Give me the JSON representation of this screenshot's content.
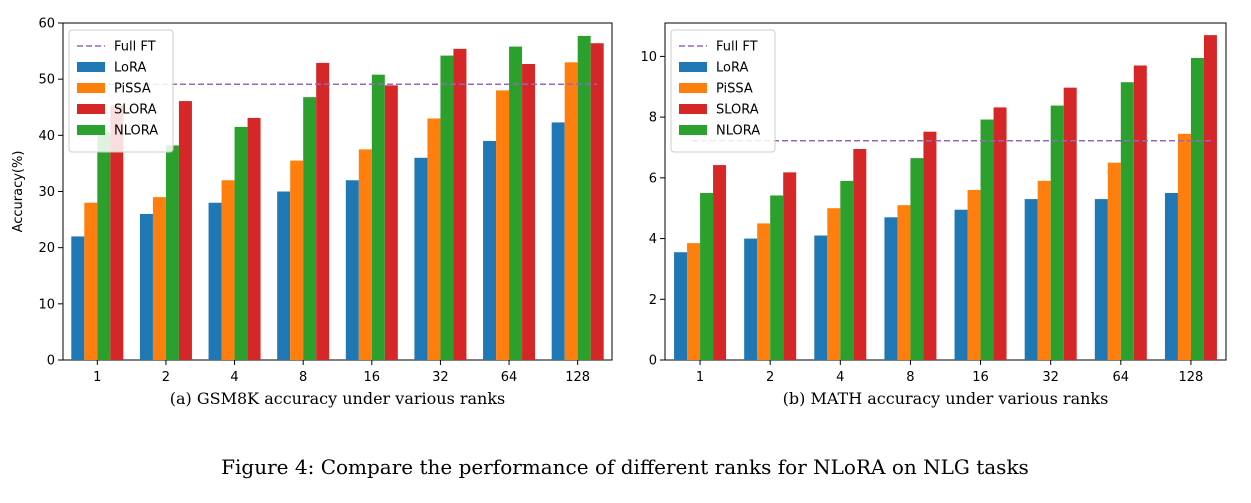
{
  "figure_caption": "Figure 4: Compare the performance of different ranks for NLoRA on NLG tasks",
  "colors": {
    "LoRA": "#1f77b4",
    "PiSSA": "#ff7f0e",
    "SLORA": "#d62728",
    "NLORA": "#2ca02c",
    "Full FT": "#9467bd"
  },
  "chart_data": [
    {
      "type": "bar",
      "caption": "(a) GSM8K accuracy under various ranks",
      "ylabel": "Accuracy(%)",
      "xlabel": "",
      "categories": [
        "1",
        "2",
        "4",
        "8",
        "16",
        "32",
        "64",
        "128"
      ],
      "ylim": [
        0,
        60
      ],
      "yticks": [
        0,
        10,
        20,
        30,
        40,
        50,
        60
      ],
      "legend_position": "top-left",
      "grid": false,
      "series": [
        {
          "name": "LoRA",
          "values": [
            22,
            26,
            28,
            30,
            32,
            36,
            39,
            42.3
          ]
        },
        {
          "name": "PiSSA",
          "values": [
            28,
            29,
            32,
            35.5,
            37.5,
            43,
            48,
            53
          ]
        },
        {
          "name": "NLORA",
          "values": [
            40.5,
            38.2,
            41.5,
            46.8,
            50.8,
            54.2,
            55.8,
            57.7
          ]
        },
        {
          "name": "SLORA",
          "values": [
            45.3,
            46.1,
            43.1,
            52.9,
            48.9,
            55.4,
            52.7,
            56.4
          ]
        }
      ],
      "reference_line": {
        "name": "Full FT",
        "value": 49.1
      },
      "legend_order": [
        "Full FT",
        "LoRA",
        "PiSSA",
        "SLORA",
        "NLORA"
      ]
    },
    {
      "type": "bar",
      "caption": "(b) MATH accuracy under various ranks",
      "ylabel": "",
      "xlabel": "",
      "categories": [
        "1",
        "2",
        "4",
        "8",
        "16",
        "32",
        "64",
        "128"
      ],
      "ylim": [
        0,
        11.1
      ],
      "yticks": [
        0,
        2,
        4,
        6,
        8,
        10
      ],
      "legend_position": "top-left",
      "grid": false,
      "series": [
        {
          "name": "LoRA",
          "values": [
            3.55,
            4.0,
            4.1,
            4.7,
            4.95,
            5.3,
            5.3,
            5.5
          ]
        },
        {
          "name": "PiSSA",
          "values": [
            3.85,
            4.5,
            5.0,
            5.1,
            5.6,
            5.9,
            6.5,
            7.45
          ]
        },
        {
          "name": "NLORA",
          "values": [
            5.5,
            5.42,
            5.9,
            6.65,
            7.92,
            8.38,
            9.15,
            9.95
          ]
        },
        {
          "name": "SLORA",
          "values": [
            6.42,
            6.18,
            6.95,
            7.52,
            8.32,
            8.97,
            9.7,
            10.7
          ]
        }
      ],
      "reference_line": {
        "name": "Full FT",
        "value": 7.22
      },
      "legend_order": [
        "Full FT",
        "LoRA",
        "PiSSA",
        "SLORA",
        "NLORA"
      ]
    }
  ]
}
